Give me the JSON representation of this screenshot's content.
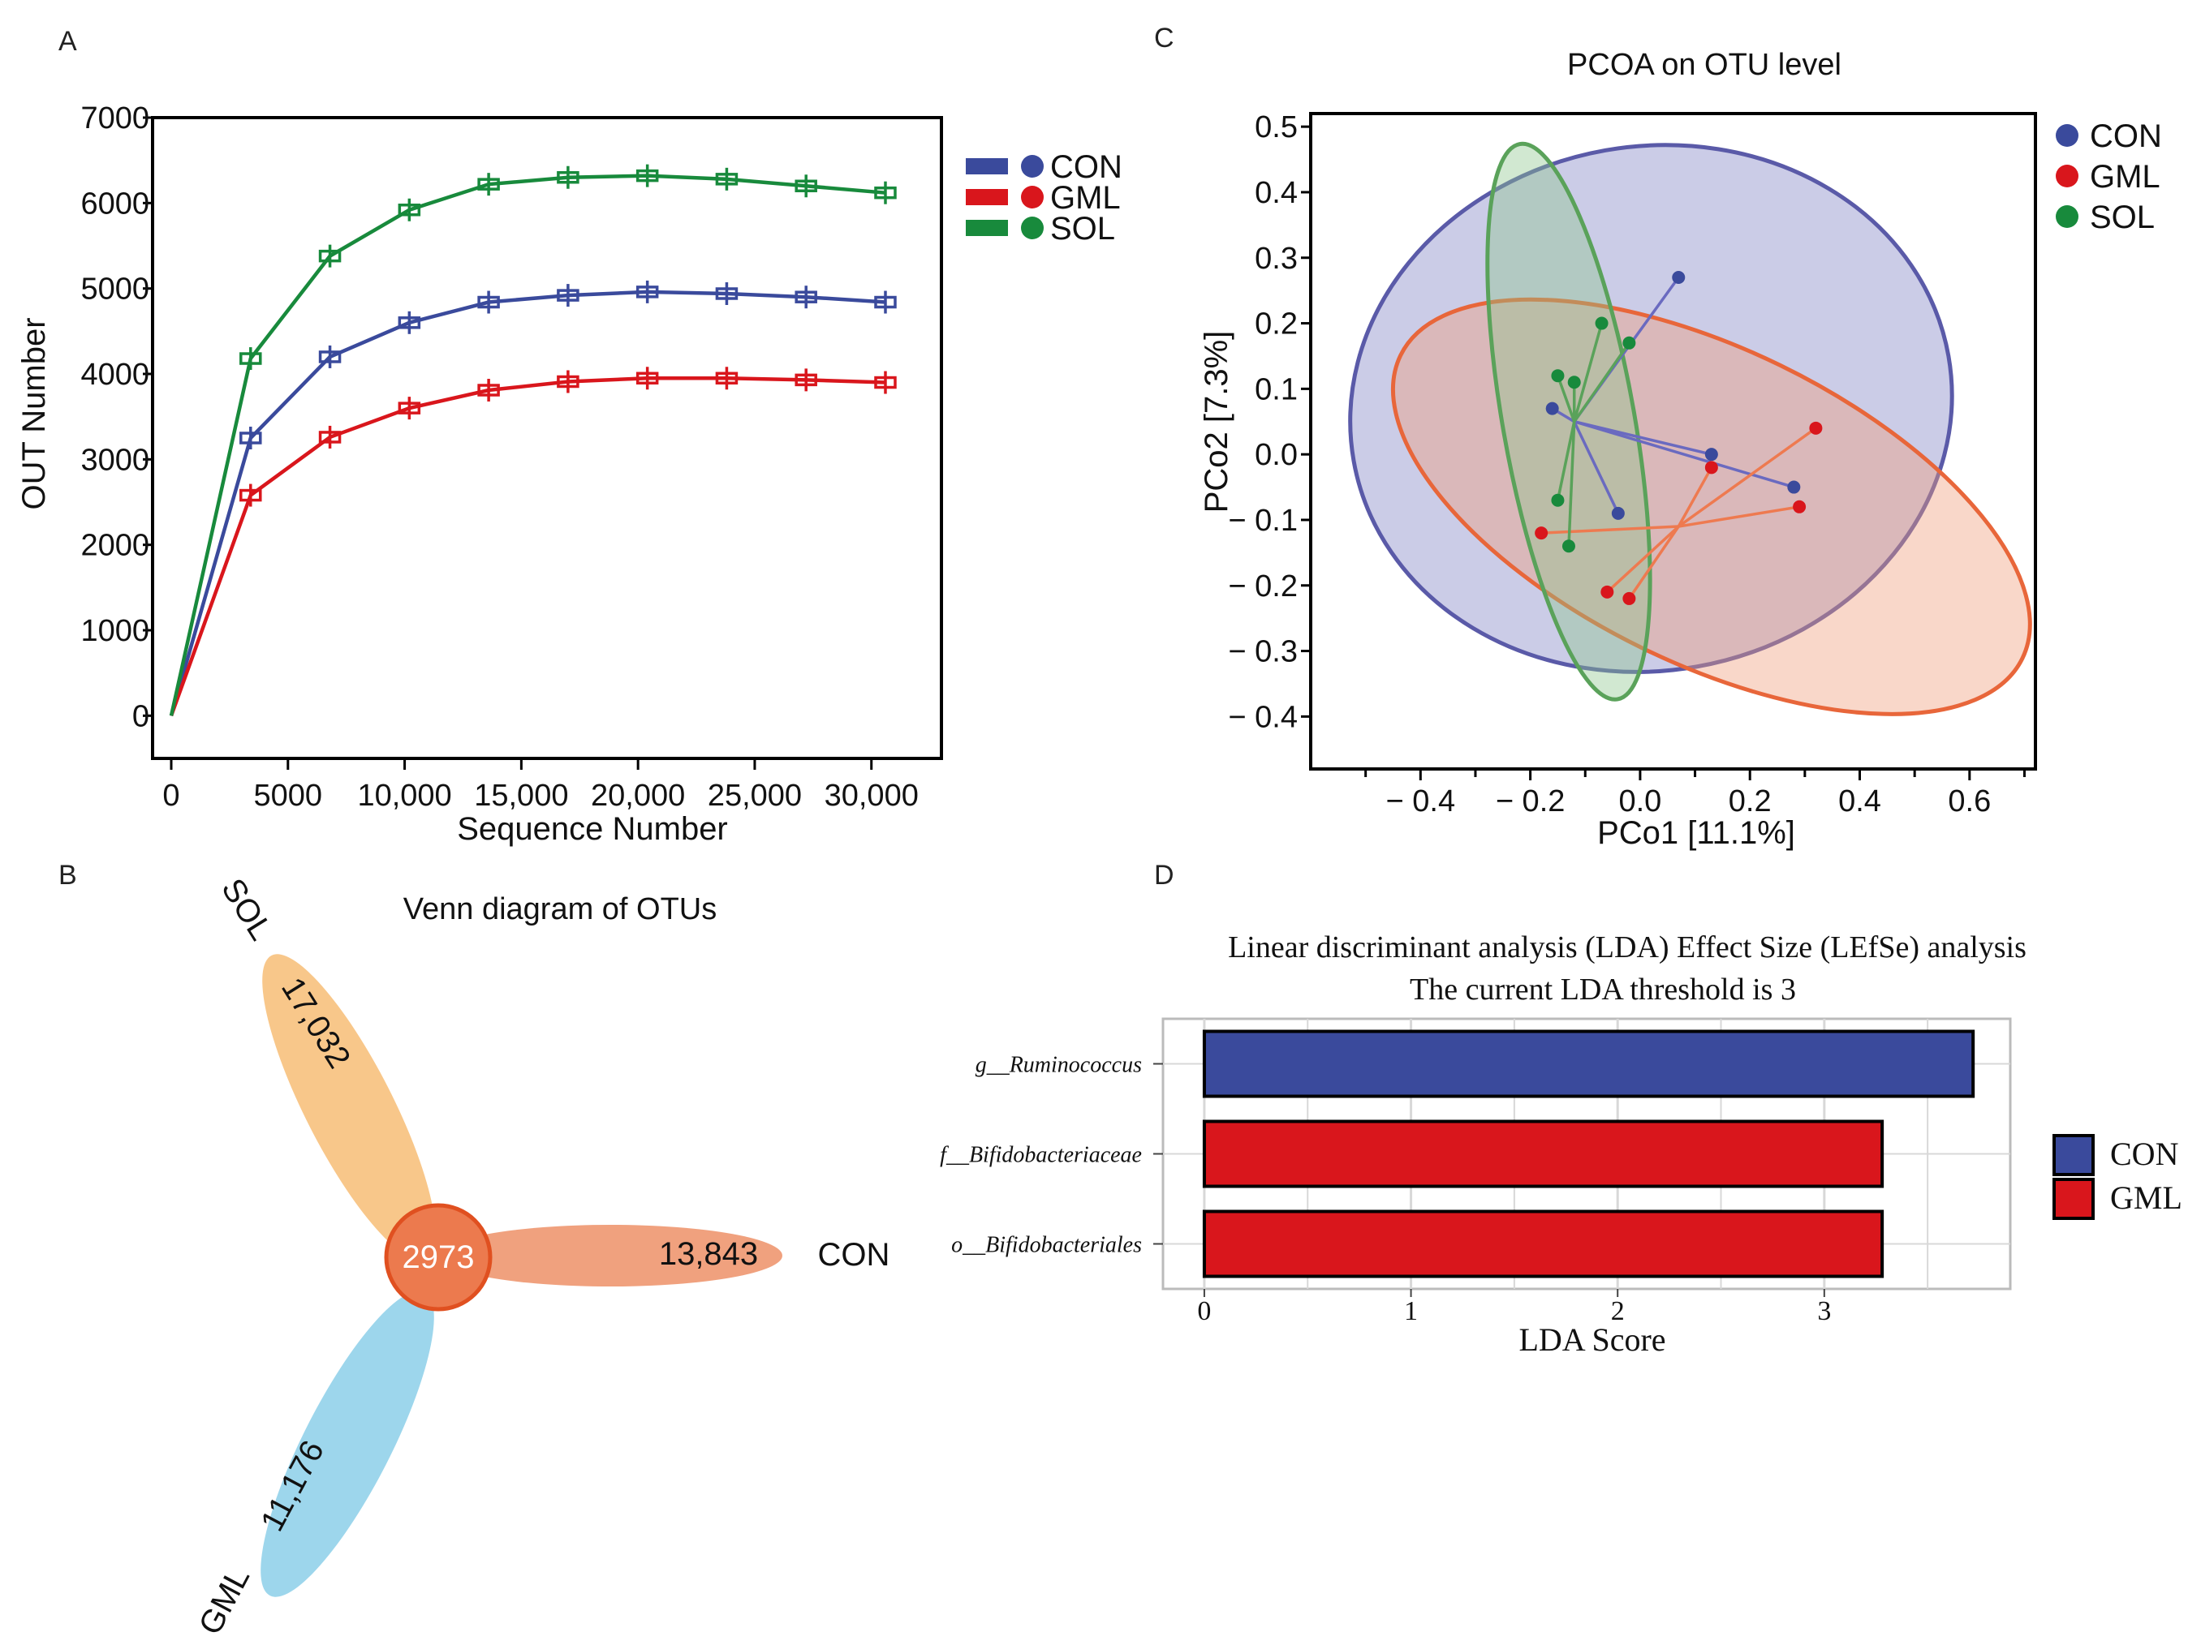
{
  "panel_labels": {
    "a": "A",
    "b": "B",
    "c": "C",
    "d": "D"
  },
  "colors": {
    "CON": "#3a4a9c",
    "GML": "#d9161c",
    "SOL": "#188a3c",
    "venn_sol": "#f5b463",
    "venn_con": "#ec8a5e",
    "venn_gml": "#7cc8e5",
    "venn_core": "#e86030"
  },
  "chart_data": [
    {
      "id": "A",
      "type": "line",
      "title": "",
      "xlabel": "Sequence Number",
      "ylabel": "OUT Number",
      "xlim": [
        -800,
        33000
      ],
      "ylim": [
        -500,
        7000
      ],
      "x_ticks": [
        0,
        5000,
        10000,
        15000,
        20000,
        25000,
        30000
      ],
      "x_tick_labels": [
        "0",
        "5000",
        "10,000",
        "15,000",
        "20,000",
        "25,000",
        "30,000"
      ],
      "y_ticks": [
        0,
        1000,
        2000,
        3000,
        4000,
        5000,
        6000,
        7000
      ],
      "y_tick_labels": [
        "0",
        "1000",
        "2000",
        "3000",
        "4000",
        "5000",
        "6000",
        "7000"
      ],
      "x": [
        0,
        3400,
        6800,
        10200,
        13600,
        17000,
        20400,
        23800,
        27200,
        30600
      ],
      "series": [
        {
          "name": "CON",
          "values": [
            0,
            3250,
            4200,
            4600,
            4840,
            4920,
            4960,
            4940,
            4900,
            4840
          ]
        },
        {
          "name": "GML",
          "values": [
            0,
            2580,
            3260,
            3600,
            3810,
            3910,
            3950,
            3950,
            3930,
            3900
          ]
        },
        {
          "name": "SOL",
          "values": [
            0,
            4180,
            5380,
            5920,
            6220,
            6300,
            6320,
            6280,
            6200,
            6120
          ]
        }
      ],
      "legend": [
        "CON",
        "GML",
        "SOL"
      ]
    },
    {
      "id": "C",
      "type": "scatter",
      "title": "PCOA on OTU level",
      "xlabel": "PCo1 [11.1%]",
      "ylabel": "PCo2 [7.3%]",
      "xlim": [
        -0.6,
        0.72
      ],
      "ylim": [
        -0.48,
        0.52
      ],
      "x_ticks": [
        -0.4,
        -0.2,
        0.0,
        0.2,
        0.4,
        0.6
      ],
      "x_tick_labels": [
        "− 0.4",
        "− 0.2",
        "0.0",
        "0.2",
        "0.4",
        "0.6"
      ],
      "y_ticks": [
        -0.4,
        -0.3,
        -0.2,
        -0.1,
        0.0,
        0.1,
        0.2,
        0.3,
        0.4,
        0.5
      ],
      "y_tick_labels": [
        "− 0.4",
        "− 0.3",
        "− 0.2",
        "− 0.1",
        "0.0",
        "0.1",
        "0.2",
        "0.3",
        "0.4",
        "0.5"
      ],
      "series": [
        {
          "name": "CON",
          "centroid": [
            -0.12,
            0.05
          ],
          "points": [
            [
              0.07,
              0.27
            ],
            [
              -0.16,
              0.07
            ],
            [
              0.13,
              0.0
            ],
            [
              0.28,
              -0.05
            ],
            [
              -0.04,
              -0.09
            ]
          ],
          "ellipse": {
            "cx": 0.02,
            "cy": 0.07,
            "rx": 0.55,
            "ry": 0.4,
            "angle": -10
          }
        },
        {
          "name": "GML",
          "centroid": [
            0.07,
            -0.11
          ],
          "points": [
            [
              0.13,
              -0.02
            ],
            [
              0.32,
              0.04
            ],
            [
              0.29,
              -0.08
            ],
            [
              -0.18,
              -0.12
            ],
            [
              -0.06,
              -0.21
            ],
            [
              -0.02,
              -0.22
            ]
          ],
          "ellipse": {
            "cx": 0.13,
            "cy": -0.08,
            "rx": 0.63,
            "ry": 0.24,
            "angle": 26
          }
        },
        {
          "name": "SOL",
          "centroid": [
            -0.12,
            0.05
          ],
          "points": [
            [
              -0.07,
              0.2
            ],
            [
              -0.02,
              0.17
            ],
            [
              -0.15,
              0.12
            ],
            [
              -0.12,
              0.11
            ],
            [
              -0.15,
              -0.07
            ],
            [
              -0.13,
              -0.14
            ]
          ],
          "ellipse": {
            "cx": -0.13,
            "cy": 0.05,
            "rx": 0.12,
            "ry": 0.43,
            "angle": -10
          }
        }
      ],
      "legend": [
        "CON",
        "GML",
        "SOL"
      ]
    },
    {
      "id": "B",
      "type": "venn",
      "title": "Venn diagram of OTUs",
      "sets": [
        {
          "name": "SOL",
          "unique": "17,032"
        },
        {
          "name": "CON",
          "unique": "13,843"
        },
        {
          "name": "GML",
          "unique": "11,176"
        }
      ],
      "shared": "2973"
    },
    {
      "id": "D",
      "type": "bar",
      "orientation": "horizontal",
      "title": "Linear discriminant analysis (LDA) Effect Size (LEfSe) analysis",
      "subtitle": "The current LDA threshold is 3",
      "xlabel": "LDA Score",
      "xlim": [
        -0.2,
        3.9
      ],
      "x_ticks": [
        0,
        1,
        2,
        3
      ],
      "categories": [
        "g__Ruminococcus",
        "f__Bifidobacteriaceae",
        "o__Bifidobacteriales"
      ],
      "values": [
        3.72,
        3.28,
        3.28
      ],
      "groups": [
        "CON",
        "GML",
        "GML"
      ],
      "legend": [
        "CON",
        "GML"
      ]
    }
  ]
}
